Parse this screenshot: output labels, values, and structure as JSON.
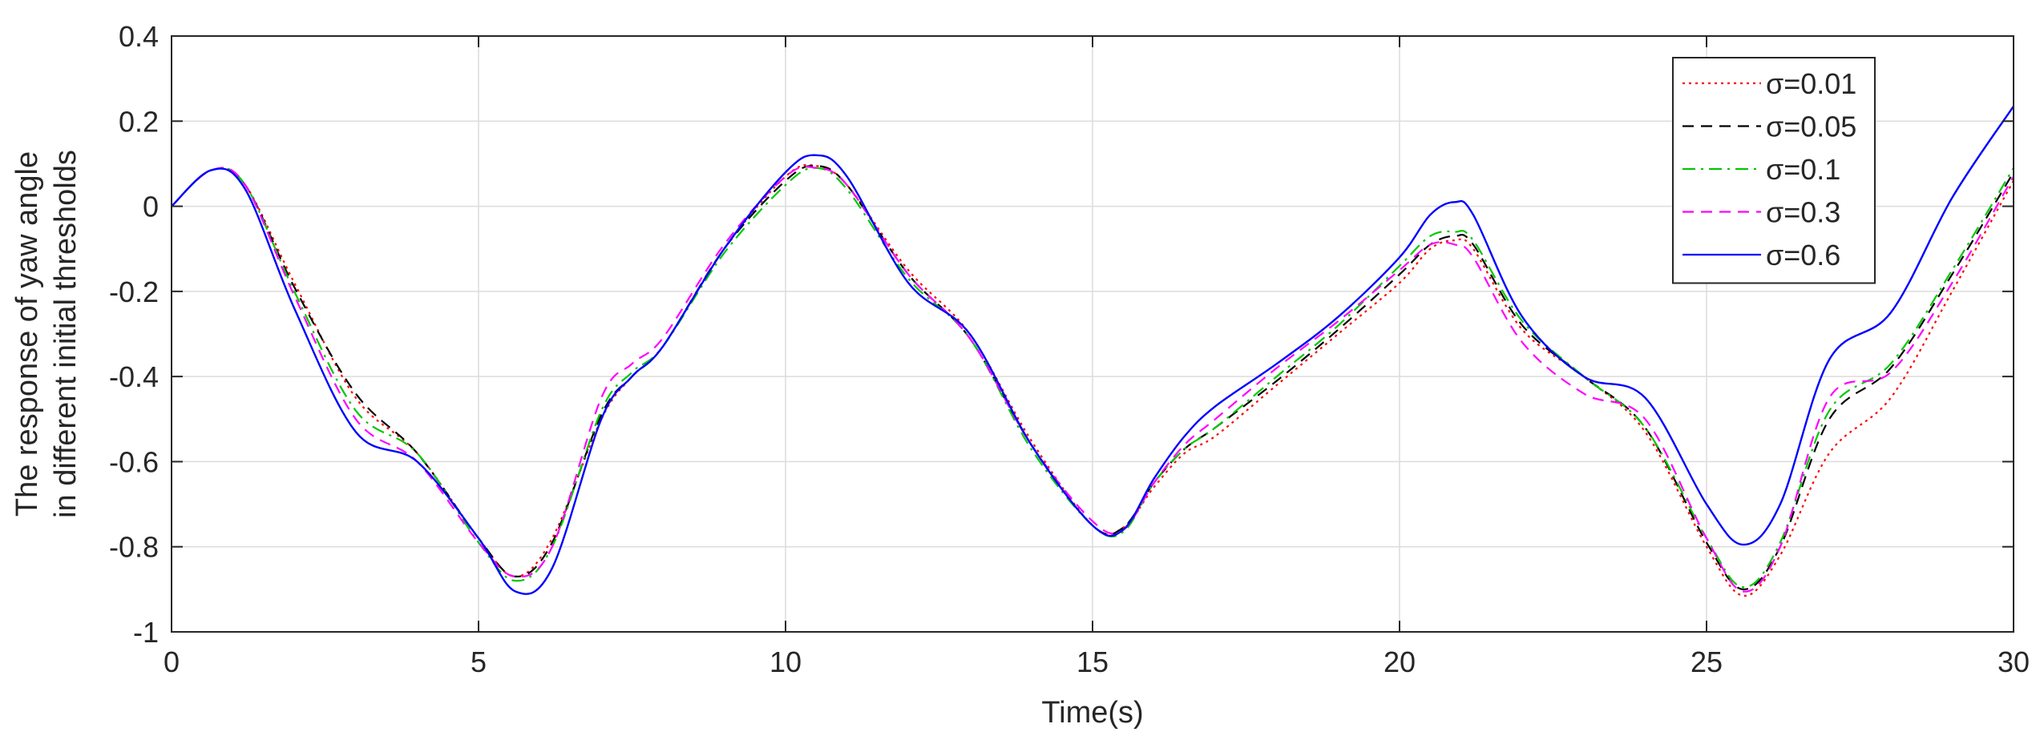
{
  "chart_data": {
    "type": "line",
    "title": "",
    "xlabel": "Time(s)",
    "ylabel_line1": "The response of yaw angle",
    "ylabel_line2": "in different initial thresholds",
    "xlim": [
      0,
      30
    ],
    "ylim": [
      -1,
      0.4
    ],
    "xticks": [
      0,
      5,
      10,
      15,
      20,
      25,
      30
    ],
    "xtick_labels": [
      "0",
      "5",
      "10",
      "15",
      "20",
      "25",
      "30"
    ],
    "yticks": [
      0.4,
      0.2,
      0,
      -0.2,
      -0.4,
      -0.6,
      -0.8,
      -1
    ],
    "ytick_labels": [
      "0.4",
      "0.2",
      "0",
      "-0.2",
      "-0.4",
      "-0.6",
      "-0.8",
      "-1"
    ],
    "grid": true,
    "legend_position": "top-right",
    "series": [
      {
        "name": "σ=0.01",
        "color": "#ff0000",
        "dash": "dotted",
        "points": [
          [
            0,
            0
          ],
          [
            0.65,
            0.085
          ],
          [
            1.2,
            0.05
          ],
          [
            2,
            -0.18
          ],
          [
            3,
            -0.45
          ],
          [
            4,
            -0.58
          ],
          [
            5,
            -0.78
          ],
          [
            5.6,
            -0.87
          ],
          [
            6.2,
            -0.78
          ],
          [
            7,
            -0.5
          ],
          [
            7.5,
            -0.4
          ],
          [
            8,
            -0.33
          ],
          [
            9,
            -0.1
          ],
          [
            10,
            0.07
          ],
          [
            10.5,
            0.095
          ],
          [
            11,
            0.05
          ],
          [
            12,
            -0.15
          ],
          [
            13,
            -0.3
          ],
          [
            14,
            -0.55
          ],
          [
            15,
            -0.75
          ],
          [
            15.5,
            -0.755
          ],
          [
            16,
            -0.66
          ],
          [
            16.5,
            -0.58
          ],
          [
            17,
            -0.54
          ],
          [
            18,
            -0.42
          ],
          [
            19,
            -0.3
          ],
          [
            20,
            -0.18
          ],
          [
            20.5,
            -0.1
          ],
          [
            20.9,
            -0.08
          ],
          [
            21.2,
            -0.1
          ],
          [
            22,
            -0.29
          ],
          [
            23,
            -0.4
          ],
          [
            24,
            -0.53
          ],
          [
            25,
            -0.8
          ],
          [
            25.6,
            -0.915
          ],
          [
            26.2,
            -0.82
          ],
          [
            27,
            -0.58
          ],
          [
            28,
            -0.45
          ],
          [
            29,
            -0.2
          ],
          [
            30,
            0.06
          ]
        ]
      },
      {
        "name": "σ=0.05",
        "color": "#000000",
        "dash": "dashed",
        "points": [
          [
            0,
            0
          ],
          [
            0.65,
            0.085
          ],
          [
            1.2,
            0.05
          ],
          [
            2,
            -0.19
          ],
          [
            3,
            -0.44
          ],
          [
            4,
            -0.58
          ],
          [
            5,
            -0.78
          ],
          [
            5.6,
            -0.87
          ],
          [
            6.2,
            -0.79
          ],
          [
            7,
            -0.49
          ],
          [
            7.5,
            -0.4
          ],
          [
            8,
            -0.33
          ],
          [
            9,
            -0.1
          ],
          [
            10,
            0.06
          ],
          [
            10.5,
            0.095
          ],
          [
            11,
            0.05
          ],
          [
            12,
            -0.16
          ],
          [
            13,
            -0.31
          ],
          [
            14,
            -0.56
          ],
          [
            15,
            -0.75
          ],
          [
            15.5,
            -0.755
          ],
          [
            16,
            -0.65
          ],
          [
            16.5,
            -0.57
          ],
          [
            17,
            -0.52
          ],
          [
            18,
            -0.41
          ],
          [
            19,
            -0.29
          ],
          [
            20,
            -0.16
          ],
          [
            20.5,
            -0.09
          ],
          [
            20.9,
            -0.07
          ],
          [
            21.2,
            -0.09
          ],
          [
            22,
            -0.28
          ],
          [
            23,
            -0.4
          ],
          [
            24,
            -0.52
          ],
          [
            25,
            -0.79
          ],
          [
            25.6,
            -0.9
          ],
          [
            26.2,
            -0.8
          ],
          [
            27,
            -0.5
          ],
          [
            28,
            -0.38
          ],
          [
            29,
            -0.16
          ],
          [
            30,
            0.08
          ]
        ]
      },
      {
        "name": "σ=0.1",
        "color": "#00c800",
        "dash": "dashdot",
        "points": [
          [
            0,
            0
          ],
          [
            0.65,
            0.085
          ],
          [
            1.2,
            0.05
          ],
          [
            2,
            -0.2
          ],
          [
            3,
            -0.48
          ],
          [
            4,
            -0.58
          ],
          [
            5,
            -0.79
          ],
          [
            5.6,
            -0.88
          ],
          [
            6.2,
            -0.8
          ],
          [
            7,
            -0.48
          ],
          [
            7.5,
            -0.39
          ],
          [
            8,
            -0.33
          ],
          [
            9,
            -0.11
          ],
          [
            10,
            0.05
          ],
          [
            10.5,
            0.09
          ],
          [
            11,
            0.04
          ],
          [
            12,
            -0.17
          ],
          [
            13,
            -0.31
          ],
          [
            14,
            -0.57
          ],
          [
            15,
            -0.75
          ],
          [
            15.5,
            -0.765
          ],
          [
            16,
            -0.65
          ],
          [
            16.5,
            -0.57
          ],
          [
            17,
            -0.52
          ],
          [
            18,
            -0.4
          ],
          [
            19,
            -0.28
          ],
          [
            20,
            -0.14
          ],
          [
            20.5,
            -0.07
          ],
          [
            20.9,
            -0.06
          ],
          [
            21.2,
            -0.08
          ],
          [
            22,
            -0.27
          ],
          [
            23,
            -0.4
          ],
          [
            24,
            -0.52
          ],
          [
            25,
            -0.78
          ],
          [
            25.6,
            -0.895
          ],
          [
            26.2,
            -0.79
          ],
          [
            27,
            -0.48
          ],
          [
            28,
            -0.37
          ],
          [
            29,
            -0.15
          ],
          [
            30,
            0.09
          ]
        ]
      },
      {
        "name": "σ=0.3",
        "color": "#ff00ff",
        "dash": "dashed",
        "points": [
          [
            0,
            0
          ],
          [
            0.65,
            0.085
          ],
          [
            1.2,
            0.05
          ],
          [
            2,
            -0.21
          ],
          [
            3,
            -0.5
          ],
          [
            4,
            -0.6
          ],
          [
            5,
            -0.79
          ],
          [
            5.6,
            -0.87
          ],
          [
            6.2,
            -0.8
          ],
          [
            7,
            -0.45
          ],
          [
            7.5,
            -0.37
          ],
          [
            8,
            -0.31
          ],
          [
            9,
            -0.09
          ],
          [
            10,
            0.07
          ],
          [
            10.5,
            0.09
          ],
          [
            11,
            0.05
          ],
          [
            12,
            -0.16
          ],
          [
            13,
            -0.31
          ],
          [
            14,
            -0.56
          ],
          [
            15,
            -0.74
          ],
          [
            15.5,
            -0.76
          ],
          [
            16,
            -0.65
          ],
          [
            16.5,
            -0.56
          ],
          [
            17,
            -0.5
          ],
          [
            18,
            -0.38
          ],
          [
            19,
            -0.27
          ],
          [
            20,
            -0.15
          ],
          [
            20.5,
            -0.09
          ],
          [
            20.9,
            -0.09
          ],
          [
            21.2,
            -0.12
          ],
          [
            22,
            -0.32
          ],
          [
            23,
            -0.44
          ],
          [
            24,
            -0.5
          ],
          [
            25,
            -0.78
          ],
          [
            25.6,
            -0.905
          ],
          [
            26.2,
            -0.8
          ],
          [
            27,
            -0.45
          ],
          [
            28,
            -0.39
          ],
          [
            29,
            -0.18
          ],
          [
            30,
            0.07
          ]
        ]
      },
      {
        "name": "σ=0.6",
        "color": "#0000ff",
        "dash": "solid",
        "points": [
          [
            0,
            0
          ],
          [
            0.65,
            0.085
          ],
          [
            1.2,
            0.04
          ],
          [
            2,
            -0.24
          ],
          [
            3,
            -0.53
          ],
          [
            4,
            -0.6
          ],
          [
            5,
            -0.78
          ],
          [
            5.6,
            -0.905
          ],
          [
            6.2,
            -0.85
          ],
          [
            7,
            -0.5
          ],
          [
            7.5,
            -0.4
          ],
          [
            8,
            -0.33
          ],
          [
            9,
            -0.1
          ],
          [
            10,
            0.08
          ],
          [
            10.5,
            0.12
          ],
          [
            11,
            0.07
          ],
          [
            12,
            -0.18
          ],
          [
            13,
            -0.3
          ],
          [
            14,
            -0.56
          ],
          [
            15,
            -0.75
          ],
          [
            15.5,
            -0.76
          ],
          [
            16,
            -0.64
          ],
          [
            16.5,
            -0.54
          ],
          [
            17,
            -0.47
          ],
          [
            18,
            -0.37
          ],
          [
            19,
            -0.26
          ],
          [
            20,
            -0.12
          ],
          [
            20.5,
            -0.02
          ],
          [
            20.9,
            0.01
          ],
          [
            21.2,
            -0.02
          ],
          [
            22,
            -0.26
          ],
          [
            23,
            -0.4
          ],
          [
            24,
            -0.45
          ],
          [
            25,
            -0.7
          ],
          [
            25.6,
            -0.795
          ],
          [
            26.2,
            -0.7
          ],
          [
            27,
            -0.36
          ],
          [
            28,
            -0.25
          ],
          [
            29,
            0.02
          ],
          [
            30,
            0.235
          ]
        ]
      }
    ]
  }
}
